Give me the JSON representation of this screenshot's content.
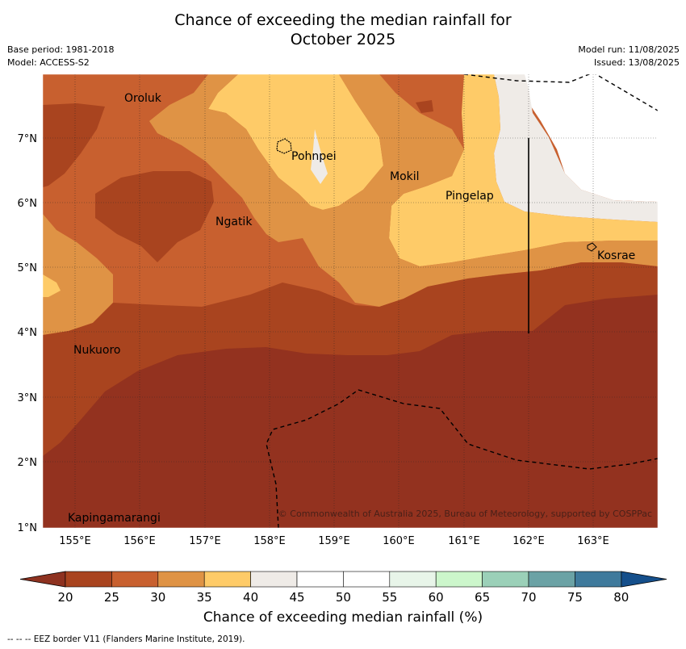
{
  "header": {
    "title_line1": "Chance of exceeding the median rainfall for",
    "title_line2": "October 2025",
    "base_period": "Base period: 1981-2018",
    "model": "Model: ACCESS-S2",
    "model_run": "Model run: 11/08/2025",
    "issued": "Issued: 13/08/2025"
  },
  "map": {
    "lon_labels": [
      "155°E",
      "156°E",
      "157°E",
      "158°E",
      "159°E",
      "160°E",
      "161°E",
      "162°E",
      "163°E"
    ],
    "lat_labels": [
      "7°N",
      "6°N",
      "5°N",
      "4°N",
      "3°N",
      "2°N",
      "1°N"
    ],
    "places": [
      "Oroluk",
      "Pohnpei",
      "Mokil",
      "Pingelap",
      "Ngatik",
      "Kosrae",
      "Nukuoro",
      "Kapingamarangi"
    ],
    "copyright": "© Commonwealth of Australia 2025, Bureau of Meteorology, supported by COSPPac"
  },
  "colorbar": {
    "ticks": [
      "20",
      "25",
      "30",
      "35",
      "40",
      "45",
      "50",
      "55",
      "60",
      "65",
      "70",
      "75",
      "80"
    ],
    "colors": [
      "#a9441f",
      "#c8602f",
      "#df9345",
      "#fecb68",
      "#efebe7",
      "#ffffff",
      "#ffffff",
      "#e8f5e9",
      "#ccf6cb",
      "#9bd0b8",
      "#6ba2a5",
      "#3f7a9c",
      "#154f8b"
    ],
    "low_extend_color": "#8e3220",
    "label": "Chance of exceeding median rainfall (%)"
  },
  "footer": {
    "legend": "--  --  -- EEZ border V11 (Flanders Marine Institute, 2019)."
  }
}
